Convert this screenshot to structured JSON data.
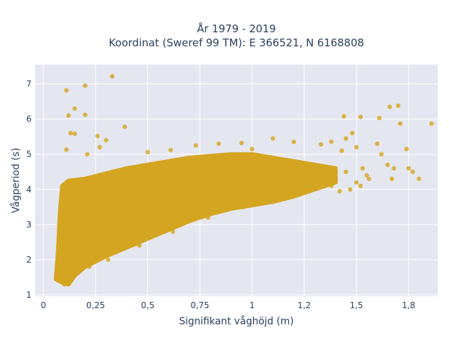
{
  "chart_data": {
    "type": "scatter",
    "title_line1": "År 1979 - 2019",
    "title_line2": "Koordinat (Sweref 99 TM): E 366521, N 6168808",
    "xlabel": "Signifikant våghöjd (m)",
    "ylabel": "Vågperiod (s)",
    "xlim": [
      -0.04,
      1.89
    ],
    "ylim": [
      0.96,
      7.55
    ],
    "x_ticks": [
      {
        "value": 0,
        "label": "0"
      },
      {
        "value": 0.25,
        "label": "0,25"
      },
      {
        "value": 0.5,
        "label": "0,5"
      },
      {
        "value": 0.75,
        "label": "0,75"
      },
      {
        "value": 1,
        "label": "1"
      },
      {
        "value": 1.25,
        "label": "1,2"
      },
      {
        "value": 1.5,
        "label": "1,5"
      },
      {
        "value": 1.75,
        "label": "1,8"
      }
    ],
    "y_ticks": [
      {
        "value": 1,
        "label": "1"
      },
      {
        "value": 2,
        "label": "2"
      },
      {
        "value": 3,
        "label": "3"
      },
      {
        "value": 4,
        "label": "4"
      },
      {
        "value": 5,
        "label": "5"
      },
      {
        "value": 6,
        "label": "6"
      },
      {
        "value": 7,
        "label": "7"
      }
    ],
    "grid": true,
    "colors": {
      "marker": "#d4a520",
      "plot_bg": "#e5e7f0",
      "grid": "#ffffff"
    },
    "points": [
      [
        0.07,
        1.42
      ],
      [
        0.08,
        1.48
      ],
      [
        0.1,
        1.3
      ],
      [
        0.11,
        1.55
      ],
      [
        0.12,
        1.75
      ],
      [
        0.1,
        2.0
      ],
      [
        0.09,
        2.3
      ],
      [
        0.1,
        2.6
      ],
      [
        0.11,
        2.9
      ],
      [
        0.12,
        3.2
      ],
      [
        0.13,
        3.5
      ],
      [
        0.12,
        3.8
      ],
      [
        0.14,
        4.1
      ],
      [
        0.15,
        1.6
      ],
      [
        0.16,
        1.9
      ],
      [
        0.15,
        2.2
      ],
      [
        0.16,
        2.5
      ],
      [
        0.17,
        2.8
      ],
      [
        0.18,
        3.1
      ],
      [
        0.19,
        3.4
      ],
      [
        0.2,
        3.7
      ],
      [
        0.19,
        4.0
      ],
      [
        0.21,
        4.2
      ],
      [
        0.22,
        1.8
      ],
      [
        0.23,
        2.1
      ],
      [
        0.24,
        2.4
      ],
      [
        0.25,
        2.7
      ],
      [
        0.26,
        3.0
      ],
      [
        0.27,
        3.3
      ],
      [
        0.28,
        3.6
      ],
      [
        0.27,
        3.9
      ],
      [
        0.3,
        4.1
      ],
      [
        0.31,
        2.0
      ],
      [
        0.33,
        2.3
      ],
      [
        0.35,
        2.6
      ],
      [
        0.36,
        2.9
      ],
      [
        0.38,
        3.2
      ],
      [
        0.4,
        3.5
      ],
      [
        0.41,
        3.8
      ],
      [
        0.43,
        4.1
      ],
      [
        0.45,
        4.3
      ],
      [
        0.46,
        2.4
      ],
      [
        0.48,
        2.7
      ],
      [
        0.5,
        3.0
      ],
      [
        0.52,
        3.3
      ],
      [
        0.54,
        3.6
      ],
      [
        0.56,
        3.9
      ],
      [
        0.58,
        4.2
      ],
      [
        0.6,
        4.4
      ],
      [
        0.62,
        2.8
      ],
      [
        0.65,
        3.1
      ],
      [
        0.67,
        3.4
      ],
      [
        0.7,
        3.7
      ],
      [
        0.72,
        4.0
      ],
      [
        0.74,
        4.3
      ],
      [
        0.76,
        4.5
      ],
      [
        0.79,
        3.2
      ],
      [
        0.82,
        3.5
      ],
      [
        0.85,
        3.8
      ],
      [
        0.88,
        4.1
      ],
      [
        0.9,
        4.4
      ],
      [
        0.93,
        4.6
      ],
      [
        0.96,
        3.5
      ],
      [
        0.99,
        3.8
      ],
      [
        1.02,
        4.1
      ],
      [
        1.05,
        4.4
      ],
      [
        1.08,
        4.6
      ],
      [
        1.1,
        3.8
      ],
      [
        1.13,
        4.1
      ],
      [
        1.16,
        4.4
      ],
      [
        1.19,
        4.6
      ],
      [
        1.22,
        4.0
      ],
      [
        1.25,
        4.3
      ],
      [
        1.28,
        4.5
      ],
      [
        1.32,
        4.2
      ],
      [
        1.36,
        4.4
      ],
      [
        1.4,
        4.3
      ],
      [
        1.45,
        4.5
      ],
      [
        1.5,
        4.2
      ],
      [
        1.55,
        4.4
      ],
      [
        0.11,
        6.82
      ],
      [
        0.2,
        6.95
      ],
      [
        0.33,
        7.22
      ],
      [
        0.12,
        6.1
      ],
      [
        0.15,
        6.3
      ],
      [
        0.2,
        6.12
      ],
      [
        0.13,
        5.6
      ],
      [
        0.15,
        5.58
      ],
      [
        0.26,
        5.52
      ],
      [
        0.3,
        5.4
      ],
      [
        0.39,
        5.78
      ],
      [
        0.27,
        5.2
      ],
      [
        0.21,
        5.0
      ],
      [
        0.11,
        5.13
      ],
      [
        0.5,
        5.06
      ],
      [
        0.61,
        5.12
      ],
      [
        0.73,
        5.25
      ],
      [
        0.84,
        5.3
      ],
      [
        0.95,
        5.32
      ],
      [
        1.0,
        5.15
      ],
      [
        1.1,
        5.45
      ],
      [
        1.2,
        5.35
      ],
      [
        1.33,
        5.28
      ],
      [
        1.38,
        5.36
      ],
      [
        1.44,
        6.08
      ],
      [
        1.52,
        6.06
      ],
      [
        1.61,
        6.03
      ],
      [
        1.66,
        6.35
      ],
      [
        1.7,
        6.38
      ],
      [
        1.71,
        5.87
      ],
      [
        1.86,
        5.87
      ],
      [
        1.43,
        5.1
      ],
      [
        1.45,
        5.45
      ],
      [
        1.48,
        5.6
      ],
      [
        1.5,
        5.2
      ],
      [
        1.53,
        4.6
      ],
      [
        1.56,
        4.3
      ],
      [
        1.6,
        5.3
      ],
      [
        1.62,
        5.0
      ],
      [
        1.65,
        4.7
      ],
      [
        1.68,
        4.6
      ],
      [
        1.75,
        4.6
      ],
      [
        1.77,
        4.5
      ],
      [
        1.74,
        5.15
      ],
      [
        1.8,
        4.3
      ],
      [
        1.67,
        4.3
      ],
      [
        1.47,
        4.0
      ],
      [
        1.52,
        4.1
      ],
      [
        1.42,
        3.95
      ],
      [
        1.38,
        4.1
      ]
    ]
  }
}
